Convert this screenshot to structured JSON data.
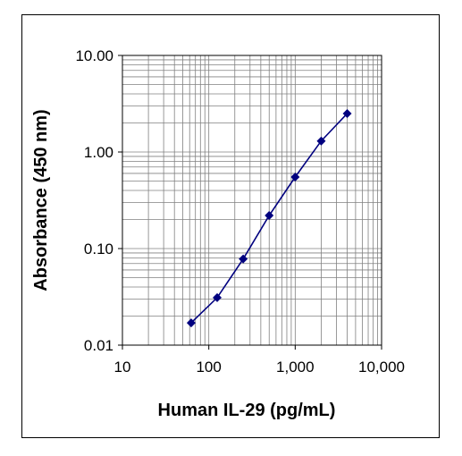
{
  "chart_data": {
    "type": "line",
    "title": "",
    "xlabel": "Human IL-29 (pg/mL)",
    "ylabel": "Absorbance (450 nm)",
    "x_scale": "log",
    "y_scale": "log",
    "xlim": [
      10,
      10000
    ],
    "ylim": [
      0.01,
      10
    ],
    "x_ticks": [
      "10",
      "100",
      "1,000",
      "10,000"
    ],
    "y_ticks": [
      "0.01",
      "0.10",
      "1.00",
      "10.00"
    ],
    "grid": true,
    "legend": "none",
    "series": [
      {
        "x": [
          62.5,
          125,
          250,
          500,
          1000,
          2000,
          4000
        ],
        "y": [
          0.017,
          0.031,
          0.078,
          0.22,
          0.55,
          1.3,
          2.5
        ]
      }
    ],
    "colors": {
      "series": "#00007F",
      "grid": "#808080",
      "axis": "#000000"
    }
  }
}
